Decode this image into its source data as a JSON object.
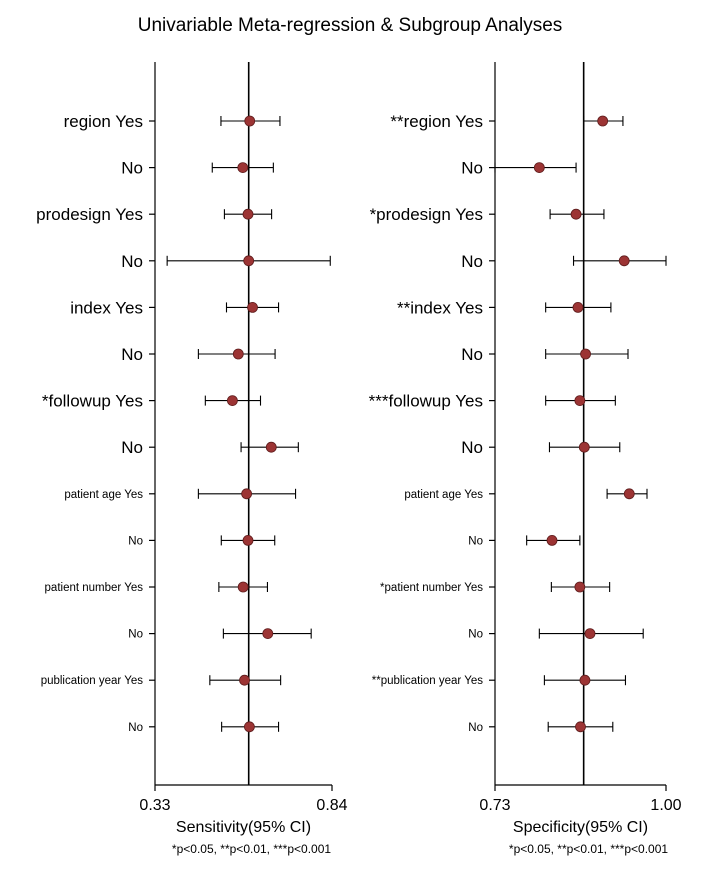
{
  "title": "Univariable Meta-regression & Subgroup Analyses",
  "footnote": "*p<0.05, **p<0.01, ***p<0.001",
  "chart_data": [
    {
      "type": "forest",
      "xlabel": "Sensitivity(95% CI)",
      "xlim": [
        0.33,
        0.84
      ],
      "tick_labels": [
        "0.33",
        "0.84"
      ],
      "reference_line": 0.6,
      "marker_color": "#9c3434",
      "rows": [
        {
          "label": "region Yes",
          "est": 0.603,
          "lo": 0.52,
          "hi": 0.69
        },
        {
          "label": "No",
          "est": 0.583,
          "lo": 0.495,
          "hi": 0.671
        },
        {
          "label": "prodesign Yes",
          "est": 0.598,
          "lo": 0.53,
          "hi": 0.666
        },
        {
          "label": "No",
          "est": 0.6,
          "lo": 0.365,
          "hi": 0.835
        },
        {
          "label": "index Yes",
          "est": 0.611,
          "lo": 0.536,
          "hi": 0.686
        },
        {
          "label": "No",
          "est": 0.57,
          "lo": 0.455,
          "hi": 0.676
        },
        {
          "label": "*followup Yes",
          "est": 0.553,
          "lo": 0.475,
          "hi": 0.634
        },
        {
          "label": "No",
          "est": 0.665,
          "lo": 0.578,
          "hi": 0.743
        },
        {
          "label": "patient age Yes",
          "est": 0.594,
          "lo": 0.455,
          "hi": 0.735
        },
        {
          "label": "No",
          "est": 0.598,
          "lo": 0.521,
          "hi": 0.675
        },
        {
          "label": "patient number Yes",
          "est": 0.584,
          "lo": 0.514,
          "hi": 0.654
        },
        {
          "label": "No",
          "est": 0.655,
          "lo": 0.527,
          "hi": 0.78
        },
        {
          "label": "publication year Yes",
          "est": 0.588,
          "lo": 0.488,
          "hi": 0.692
        },
        {
          "label": "No",
          "est": 0.602,
          "lo": 0.522,
          "hi": 0.686
        }
      ]
    },
    {
      "type": "forest",
      "xlabel": "Specificity(95% CI)",
      "xlim": [
        0.73,
        1.0
      ],
      "tick_labels": [
        "0.73",
        "1.00"
      ],
      "reference_line": 0.87,
      "marker_color": "#9c3434",
      "rows": [
        {
          "label": "**region Yes",
          "est": 0.9,
          "lo": 0.87,
          "hi": 0.932
        },
        {
          "label": "No",
          "est": 0.8,
          "lo": 0.73,
          "hi": 0.858
        },
        {
          "label": "*prodesign Yes",
          "est": 0.858,
          "lo": 0.817,
          "hi": 0.902
        },
        {
          "label": "No",
          "est": 0.934,
          "lo": 0.854,
          "hi": 1.0
        },
        {
          "label": "**index Yes",
          "est": 0.861,
          "lo": 0.81,
          "hi": 0.913
        },
        {
          "label": "No",
          "est": 0.873,
          "lo": 0.81,
          "hi": 0.94
        },
        {
          "label": "***followup Yes",
          "est": 0.864,
          "lo": 0.81,
          "hi": 0.92
        },
        {
          "label": "No",
          "est": 0.871,
          "lo": 0.816,
          "hi": 0.927
        },
        {
          "label": "patient age Yes",
          "est": 0.942,
          "lo": 0.907,
          "hi": 0.97
        },
        {
          "label": "No",
          "est": 0.82,
          "lo": 0.78,
          "hi": 0.864
        },
        {
          "label": "*patient number Yes",
          "est": 0.864,
          "lo": 0.819,
          "hi": 0.911
        },
        {
          "label": "No",
          "est": 0.88,
          "lo": 0.8,
          "hi": 0.964
        },
        {
          "label": "**publication year Yes",
          "est": 0.872,
          "lo": 0.808,
          "hi": 0.936
        },
        {
          "label": "No",
          "est": 0.865,
          "lo": 0.814,
          "hi": 0.916
        }
      ]
    }
  ]
}
